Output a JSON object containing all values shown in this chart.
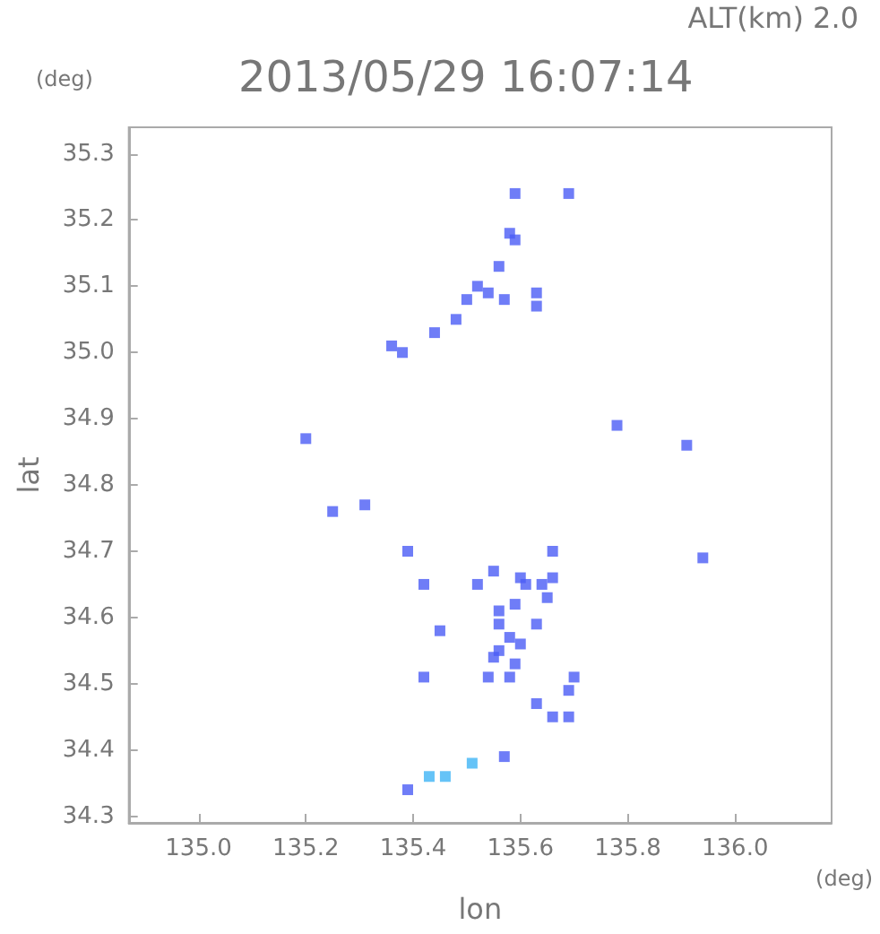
{
  "chart_data": {
    "type": "scatter",
    "title": "2013/05/29 16:07:14",
    "xlabel": "lon",
    "ylabel": "lat",
    "annotations": [
      "ALT(km) 2.0",
      "(deg)",
      "(deg)"
    ],
    "x": [
      135.59,
      135.69,
      135.58,
      135.59,
      135.56,
      135.52,
      135.5,
      135.54,
      135.57,
      135.63,
      135.63,
      135.48,
      135.44,
      135.38,
      135.36,
      135.78,
      135.91,
      135.2,
      135.31,
      135.25,
      135.39,
      135.66,
      135.94,
      135.55,
      135.52,
      135.42,
      135.6,
      135.61,
      135.64,
      135.66,
      135.59,
      135.65,
      135.56,
      135.45,
      135.56,
      135.63,
      135.58,
      135.6,
      135.56,
      135.55,
      135.59,
      135.42,
      135.54,
      135.58,
      135.7,
      135.69,
      135.63,
      135.66,
      135.69,
      135.57,
      135.51,
      135.46,
      135.43,
      135.39
    ],
    "values": [
      35.24,
      35.24,
      35.18,
      35.17,
      35.13,
      35.1,
      35.08,
      35.09,
      35.08,
      35.09,
      35.07,
      35.05,
      35.03,
      35.0,
      35.01,
      34.89,
      34.86,
      34.87,
      34.77,
      34.76,
      34.7,
      34.7,
      34.69,
      34.67,
      34.65,
      34.65,
      34.66,
      34.65,
      34.65,
      34.66,
      34.62,
      34.63,
      34.61,
      34.58,
      34.59,
      34.59,
      34.57,
      34.56,
      34.55,
      34.54,
      34.53,
      34.51,
      34.51,
      34.51,
      34.51,
      34.49,
      34.47,
      34.45,
      34.45,
      34.39,
      34.38,
      34.36,
      34.36,
      34.34
    ],
    "colors": [
      "#4b5cf5",
      "#4b5cf5",
      "#4b5cf5",
      "#4b5cf5",
      "#4b5cf5",
      "#4b5cf5",
      "#4b5cf5",
      "#4b5cf5",
      "#4b5cf5",
      "#4b5cf5",
      "#4b5cf5",
      "#4b5cf5",
      "#4b5cf5",
      "#4b5cf5",
      "#4b5cf5",
      "#4b5cf5",
      "#4b5cf5",
      "#4b5cf5",
      "#4b5cf5",
      "#4b5cf5",
      "#4b5cf5",
      "#4b5cf5",
      "#4b5cf5",
      "#4b5cf5",
      "#4b5cf5",
      "#4b5cf5",
      "#4b5cf5",
      "#4b5cf5",
      "#4b5cf5",
      "#4b5cf5",
      "#4b5cf5",
      "#4b5cf5",
      "#4b5cf5",
      "#4b5cf5",
      "#4b5cf5",
      "#4b5cf5",
      "#4b5cf5",
      "#4b5cf5",
      "#4b5cf5",
      "#4b5cf5",
      "#4b5cf5",
      "#4b5cf5",
      "#4b5cf5",
      "#4b5cf5",
      "#4b5cf5",
      "#4b5cf5",
      "#4b5cf5",
      "#4b5cf5",
      "#4b5cf5",
      "#4b5cf5",
      "#3fb4f5",
      "#3fb4f5",
      "#3fb4f5",
      "#4b5cf5"
    ],
    "marker": "square",
    "xlim": [
      134.87,
      136.18
    ],
    "xticks": [
      {
        "value": 135.0,
        "label": "135.0"
      },
      135.2,
      135.4,
      135.6,
      135.8,
      {
        "value": 136.0,
        "label": "136.0"
      }
    ],
    "ylim": [
      34.29,
      35.34
    ],
    "yticks": [
      34.3,
      34.4,
      34.5,
      34.6,
      34.7,
      34.8,
      34.9,
      {
        "value": 35.0,
        "label": "35.0"
      },
      35.1,
      35.2,
      35.3
    ]
  }
}
